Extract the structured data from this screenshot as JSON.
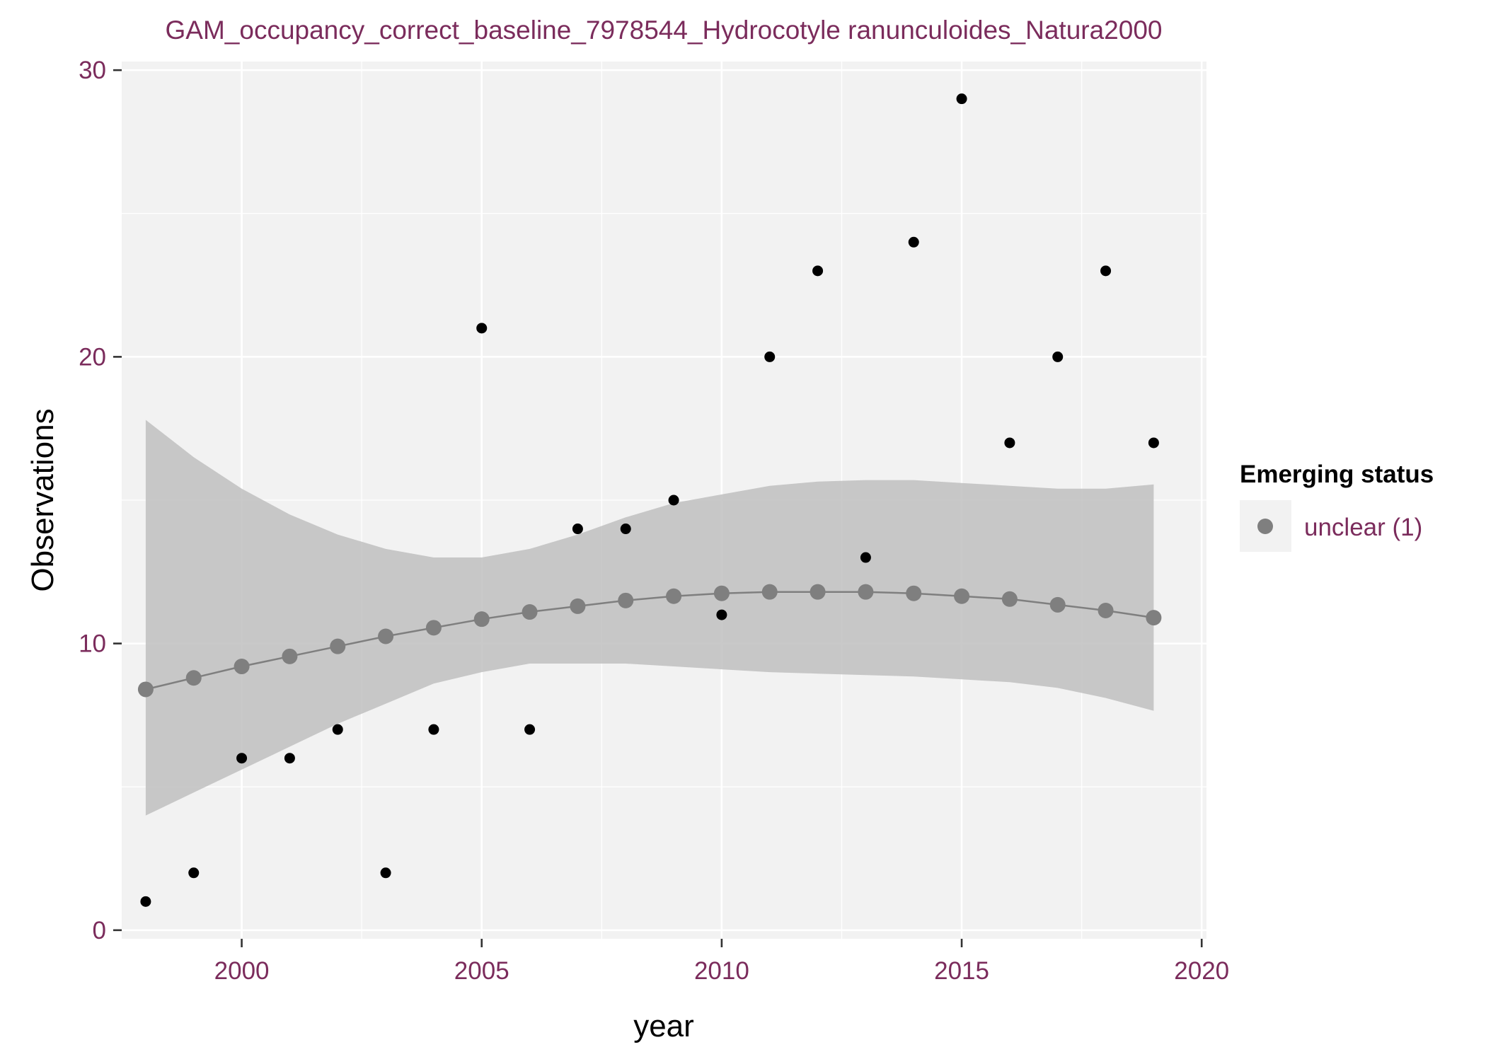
{
  "chart_data": {
    "type": "scatter",
    "title": "GAM_occupancy_correct_baseline_7978544_Hydrocotyle ranunculoides_Natura2000",
    "xlabel": "year",
    "ylabel": "Observations",
    "xlim": [
      1997.5,
      2020.1
    ],
    "ylim": [
      -0.3,
      30.3
    ],
    "x_ticks": [
      2000,
      2005,
      2010,
      2015,
      2020
    ],
    "x_tick_labels": [
      "2000",
      "2005",
      "2010",
      "2015",
      "2020"
    ],
    "y_ticks": [
      0,
      10,
      20,
      30
    ],
    "y_tick_labels": [
      "0",
      "10",
      "20",
      "30"
    ],
    "grid": true,
    "legend": {
      "title": "Emerging status",
      "placement": "right",
      "entries": [
        {
          "label": "unclear (1)",
          "color": "#7f7f7f"
        }
      ]
    },
    "observations": {
      "color": "#000000",
      "x": [
        1998,
        1999,
        2000,
        2001,
        2002,
        2003,
        2004,
        2005,
        2006,
        2007,
        2008,
        2009,
        2010,
        2011,
        2012,
        2013,
        2014,
        2015,
        2016,
        2017,
        2018,
        2019
      ],
      "y": [
        1,
        2,
        6,
        6,
        7,
        2,
        7,
        21,
        7,
        14,
        14,
        15,
        11,
        20,
        23,
        13,
        24,
        29,
        17,
        20,
        23,
        17
      ]
    },
    "fit": {
      "color": "#7f7f7f",
      "x": [
        1998,
        1999,
        2000,
        2001,
        2002,
        2003,
        2004,
        2005,
        2006,
        2007,
        2008,
        2009,
        2010,
        2011,
        2012,
        2013,
        2014,
        2015,
        2016,
        2017,
        2018,
        2019
      ],
      "y": [
        8.4,
        8.8,
        9.2,
        9.55,
        9.9,
        10.25,
        10.55,
        10.85,
        11.1,
        11.3,
        11.5,
        11.65,
        11.75,
        11.8,
        11.8,
        11.8,
        11.75,
        11.65,
        11.55,
        11.35,
        11.15,
        10.9
      ]
    },
    "ribbon": {
      "color": "#bfbfbf",
      "x": [
        1998,
        1999,
        2000,
        2001,
        2002,
        2003,
        2004,
        2005,
        2006,
        2007,
        2008,
        2009,
        2010,
        2011,
        2012,
        2013,
        2014,
        2015,
        2016,
        2017,
        2018,
        2019
      ],
      "lower": [
        4.0,
        4.8,
        5.6,
        6.4,
        7.2,
        7.9,
        8.6,
        9.0,
        9.3,
        9.3,
        9.3,
        9.2,
        9.1,
        9.0,
        8.95,
        8.9,
        8.85,
        8.75,
        8.65,
        8.45,
        8.1,
        7.65
      ],
      "upper": [
        17.8,
        16.5,
        15.4,
        14.5,
        13.8,
        13.3,
        13.0,
        13.0,
        13.3,
        13.8,
        14.4,
        14.9,
        15.2,
        15.5,
        15.65,
        15.7,
        15.7,
        15.6,
        15.5,
        15.4,
        15.4,
        15.55
      ]
    }
  }
}
